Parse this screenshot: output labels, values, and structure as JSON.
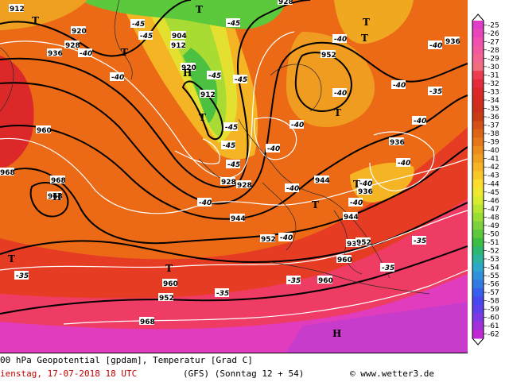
{
  "footer": {
    "title": "00 hPa Geopotential [gpdam], Temperatur [Grad C]",
    "date": "ienstag, 17-07-2018  18 UTC",
    "model": "(GFS)  (Sonntag 12 + 54)",
    "source": "© www.wetter3.de"
  },
  "legend": {
    "levels": [
      "-25",
      "-26",
      "-27",
      "-28",
      "-29",
      "-30",
      "-31",
      "-32",
      "-33",
      "-34",
      "-35",
      "-36",
      "-37",
      "-38",
      "-39",
      "-40",
      "-41",
      "-42",
      "-43",
      "-44",
      "-45",
      "-46",
      "-47",
      "-48",
      "-49",
      "-50",
      "-51",
      "-52",
      "-53",
      "-54",
      "-55",
      "-56",
      "-57",
      "-58",
      "-59",
      "-60",
      "-61",
      "-62"
    ]
  },
  "colors": {
    "bar": [
      "#e03cc8",
      "#ea46bc",
      "#f050b0",
      "#f25aa0",
      "#f46490",
      "#f06e80",
      "#ee3c50",
      "#e62c3c",
      "#dc2828",
      "#d42a20",
      "#cc3018",
      "#c83c14",
      "#d45014",
      "#dc6414",
      "#e47818",
      "#ec8c1c",
      "#f0a020",
      "#f4b424",
      "#f8c828",
      "#fcdc2c",
      "#f0e830",
      "#d8ec30",
      "#b8e630",
      "#98dc34",
      "#7cd23c",
      "#5cc83c",
      "#3cbe44",
      "#2cb870",
      "#2cb4a0",
      "#2ca8c8",
      "#3090dc",
      "#3478e4",
      "#3860ec",
      "#4848f0",
      "#6040ec",
      "#8038e4",
      "#a030dc",
      "#c028d4"
    ]
  },
  "map": {
    "gh_labels": [
      "912",
      "936",
      "920",
      "928",
      "904",
      "920",
      "912",
      "952",
      "928",
      "944",
      "944",
      "936",
      "960",
      "968",
      "968",
      "952",
      "928",
      "936",
      "944",
      "936",
      "960",
      "952",
      "960",
      "952",
      "960",
      "968",
      "968",
      "912",
      "928",
      "936"
    ],
    "temp_labels": [
      "-45",
      "-40",
      "-45",
      "-45",
      "-45",
      "-40",
      "-40",
      "-45",
      "-40",
      "-40",
      "-40",
      "-40",
      "-45",
      "-45",
      "-40",
      "-40",
      "-40",
      "-40",
      "-40",
      "-40",
      "-40",
      "-40",
      "-35",
      "-35",
      "-35",
      "-35",
      "-35",
      "-35",
      "-45"
    ],
    "pressure_labels": [
      "T",
      "T",
      "H",
      "T",
      "T",
      "T",
      "T",
      "T",
      "T",
      "H",
      "T",
      "T",
      "T",
      "H"
    ]
  }
}
